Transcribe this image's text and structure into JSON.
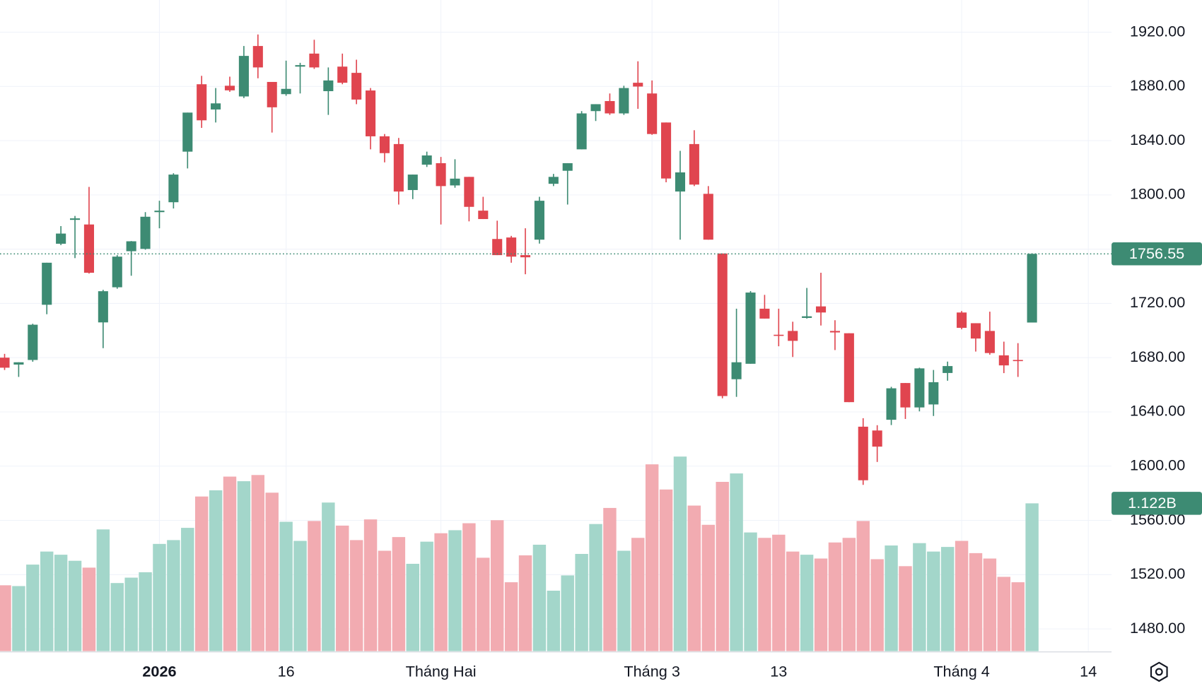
{
  "chart_data": {
    "type": "candlestick",
    "open": [
      1680,
      1674.9,
      1678.3,
      1719,
      1764,
      1781.6,
      1778.2,
      1706,
      1731.9,
      1758.5,
      1760.2,
      1787.3,
      1794.6,
      1831.9,
      1881.6,
      1863,
      1880.5,
      1872.6,
      1909.8,
      1883.3,
      1874.3,
      1894.6,
      1904.2,
      1876.5,
      1894.6,
      1890,
      1877,
      1843.2,
      1837.5,
      1803.6,
      1822.3,
      1823.4,
      1807,
      1813.3,
      1788.4,
      1767.5,
      1768.6,
      1755.6,
      1767,
      1808.2,
      1817.8,
      1833.6,
      1861.8,
      1869.2,
      1860.1,
      1882.7,
      1874.8,
      1853.4,
      1802.5,
      1837.5,
      1800.8,
      1756.8,
      1664.1,
      1675.5,
      1716.1,
      1696.9,
      1699.7,
      1709.3,
      1717.8,
      1699.7,
      1698,
      1629.1,
      1626.3,
      1634.2,
      1661.3,
      1643.3,
      1645.5,
      1668.7,
      1713.3,
      1705.4,
      1699.7,
      1681.7,
      1678.3,
      1705.9
    ],
    "high": [
      1682.8,
      1676.6,
      1705,
      1750,
      1777,
      1784.5,
      1805.9,
      1730,
      1755.6,
      1766,
      1787.3,
      1795.7,
      1816,
      1860.7,
      1887.8,
      1878.8,
      1887.2,
      1909.8,
      1918.3,
      1883.3,
      1899,
      1897.4,
      1914.4,
      1894,
      1904.2,
      1899.7,
      1878.8,
      1844.9,
      1842,
      1815,
      1831.9,
      1828,
      1826.3,
      1813.3,
      1798.6,
      1781,
      1769.8,
      1775.4,
      1798.6,
      1815.5,
      1823.4,
      1861.8,
      1866.9,
      1874.8,
      1880.5,
      1898.5,
      1884.4,
      1853.4,
      1832.5,
      1847.7,
      1806.5,
      1756.8,
      1716.1,
      1729.1,
      1726.3,
      1716.1,
      1706.5,
      1731.4,
      1742.6,
      1707.6,
      1698,
      1635.4,
      1630.2,
      1658.5,
      1661.3,
      1672.6,
      1670.9,
      1677.1,
      1714.4,
      1705.4,
      1713.9,
      1691.8,
      1690.7,
      1757
    ],
    "low": [
      1670.9,
      1665.8,
      1677,
      1712,
      1763,
      1753.4,
      1742,
      1687,
      1730.8,
      1740.4,
      1759.6,
      1775.4,
      1790,
      1819.5,
      1849.4,
      1853.4,
      1876,
      1871.4,
      1886,
      1846,
      1873.1,
      1874.8,
      1892.9,
      1859,
      1881.6,
      1866.9,
      1833.6,
      1824,
      1792.9,
      1796.9,
      1820.6,
      1778.2,
      1805.3,
      1780.5,
      1782.2,
      1755.6,
      1750,
      1741.5,
      1764.1,
      1806.5,
      1792.9,
      1833.6,
      1854.5,
      1859,
      1859,
      1863.5,
      1844.3,
      1809.3,
      1767,
      1806.5,
      1767,
      1650,
      1651.1,
      1675.5,
      1708.8,
      1688.4,
      1680.5,
      1708.8,
      1703.7,
      1685.6,
      1647.2,
      1586.2,
      1603.1,
      1630.3,
      1634.8,
      1640.4,
      1637,
      1663,
      1700.9,
      1684.5,
      1682.2,
      1668.6,
      1665.8,
      1705.9
    ],
    "close": [
      1672.6,
      1676.6,
      1704.3,
      1750,
      1771.5,
      1782.7,
      1742.6,
      1729,
      1754.5,
      1765.8,
      1783.9,
      1788.4,
      1815,
      1860.7,
      1855,
      1867.5,
      1877.1,
      1902.5,
      1894,
      1864.6,
      1878.2,
      1895.7,
      1894,
      1884.4,
      1882.7,
      1870.3,
      1843.2,
      1830.8,
      1802.5,
      1815,
      1829.1,
      1806.5,
      1812,
      1791.2,
      1782.2,
      1755.6,
      1754.5,
      1754,
      1795.7,
      1813.3,
      1823.4,
      1860.1,
      1866.9,
      1860.1,
      1878.8,
      1879.9,
      1844.9,
      1812.1,
      1816.6,
      1807.6,
      1767,
      1651.7,
      1676.6,
      1728,
      1708.8,
      1696.3,
      1692.4,
      1710.5,
      1713.3,
      1698.6,
      1647.2,
      1589.6,
      1614.4,
      1657.4,
      1643.3,
      1672.1,
      1661.9,
      1673.8,
      1702,
      1694.1,
      1683.4,
      1674.3,
      1677.7,
      1756.55
    ],
    "volume": [
      0.5,
      0.494,
      0.657,
      0.756,
      0.732,
      0.686,
      0.634,
      0.924,
      0.517,
      0.558,
      0.599,
      0.814,
      0.843,
      0.936,
      1.174,
      1.221,
      1.325,
      1.29,
      1.337,
      1.203,
      0.982,
      0.837,
      0.988,
      1.128,
      0.953,
      0.843,
      1.0,
      0.762,
      0.866,
      0.663,
      0.831,
      0.895,
      0.918,
      0.971,
      0.709,
      0.994,
      0.523,
      0.727,
      0.808,
      0.459,
      0.575,
      0.738,
      0.965,
      1.087,
      0.762,
      0.86,
      1.418,
      1.227,
      1.477,
      1.105,
      0.959,
      1.285,
      1.349,
      0.901,
      0.86,
      0.884,
      0.756,
      0.732,
      0.703,
      0.825,
      0.86,
      0.988,
      0.698,
      0.802,
      0.645,
      0.82,
      0.756,
      0.791,
      0.837,
      0.744,
      0.703,
      0.564,
      0.523,
      1.122
    ],
    "volume_labels": [
      null,
      null,
      null,
      null,
      null,
      null,
      null,
      null,
      null,
      null,
      null,
      null,
      null,
      null,
      null,
      null,
      null,
      null,
      null,
      null,
      null,
      null,
      null,
      null,
      null,
      null,
      null,
      null,
      null,
      null,
      null,
      null,
      null,
      null,
      null,
      null,
      null,
      null,
      null,
      null,
      null,
      null,
      null,
      null,
      null,
      null,
      null,
      null,
      null,
      null,
      null,
      null,
      null,
      null,
      null,
      null,
      null,
      null,
      null,
      null,
      null,
      null,
      null,
      null,
      null,
      null,
      null,
      null,
      null,
      null,
      null,
      null,
      null,
      "1.122B"
    ],
    "ylim": [
      1463.6,
      1943.7
    ],
    "yticks": [
      {
        "value": 1480,
        "label": "1480.00"
      },
      {
        "value": 1520,
        "label": "1520.00"
      },
      {
        "value": 1560,
        "label": "1560.00"
      },
      {
        "value": 1600,
        "label": "1600.00"
      },
      {
        "value": 1640,
        "label": "1640.00"
      },
      {
        "value": 1680,
        "label": "1680.00"
      },
      {
        "value": 1720,
        "label": "1720.00"
      },
      {
        "value": 1760,
        "label": "1760.00"
      },
      {
        "value": 1800,
        "label": "1800.00"
      },
      {
        "value": 1840,
        "label": "1840.00"
      },
      {
        "value": 1880,
        "label": "1880.00"
      },
      {
        "value": 1920,
        "label": "1920.00"
      }
    ],
    "xticks": [
      {
        "value": 11,
        "label": "2026"
      },
      {
        "value": 20,
        "label": "16"
      },
      {
        "value": 31,
        "label": "Tháng Hai"
      },
      {
        "value": 46,
        "label": "Tháng 3"
      },
      {
        "value": 55,
        "label": "13"
      },
      {
        "value": 68,
        "label": "Tháng 4"
      },
      {
        "value": 77,
        "label": "14"
      }
    ],
    "grid": true,
    "up_color": "#3d8b73",
    "down_color": "#e0454f",
    "volume_up_color": "#a3d6ca",
    "volume_down_color": "#f2abb1"
  }
}
